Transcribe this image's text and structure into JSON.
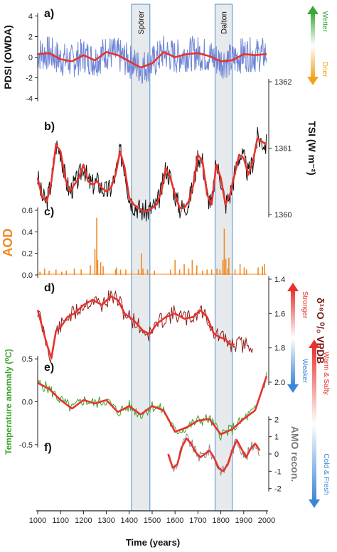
{
  "chart_data": {
    "type": "line",
    "xlabel": "Time (years)",
    "x_ticks": [
      1000,
      1100,
      1200,
      1300,
      1400,
      1500,
      1600,
      1700,
      1800,
      1900,
      2000
    ],
    "xlim": [
      1000,
      2000
    ],
    "periods": [
      {
        "label": "Spörer",
        "start": 1410,
        "end": 1490
      },
      {
        "label": "Dalton",
        "start": 1775,
        "end": 1850
      }
    ],
    "panels": [
      {
        "id": "a",
        "tag": "a)",
        "ylabel": "PDSI (OWDA)",
        "axis_side": "left",
        "ylim": [
          -5,
          5
        ],
        "ticks": [
          4,
          2,
          0,
          -2,
          -4
        ],
        "indicator": {
          "top": "Wetter",
          "bottom": "Drier",
          "top_color": "#3aa93a",
          "bottom_color": "#f0a31a"
        },
        "series": [
          {
            "role": "raw",
            "color": "#6f86d6",
            "seed": 7,
            "amp": 1.7,
            "x": [
              1000,
              1050,
              1100,
              1150,
              1200,
              1250,
              1300,
              1350,
              1400,
              1450,
              1500,
              1550,
              1600,
              1650,
              1700,
              1750,
              1800,
              1850,
              1900,
              1950,
              2000
            ],
            "y": [
              0.3,
              0.4,
              -0.2,
              -0.4,
              0.2,
              -0.3,
              0.5,
              0.2,
              -0.4,
              -1.0,
              -0.6,
              0.5,
              0.0,
              0.3,
              0.4,
              0.1,
              -0.4,
              -0.3,
              0.3,
              0.2,
              0.3
            ]
          },
          {
            "role": "smooth",
            "color": "#e8322d",
            "x": [
              1000,
              1050,
              1100,
              1150,
              1200,
              1250,
              1300,
              1350,
              1400,
              1450,
              1500,
              1550,
              1600,
              1650,
              1700,
              1750,
              1800,
              1850,
              1900,
              1950,
              2000
            ],
            "y": [
              0.3,
              0.4,
              -0.2,
              -0.4,
              0.2,
              -0.3,
              0.5,
              0.2,
              -0.4,
              -1.0,
              -0.6,
              0.5,
              0.0,
              0.3,
              0.4,
              0.1,
              -0.4,
              -0.3,
              0.3,
              0.2,
              0.3
            ]
          }
        ]
      },
      {
        "id": "b",
        "tag": "b)",
        "ylabel": "TSI (W m⁻²)",
        "axis_side": "right",
        "ylim": [
          1360,
          1362
        ],
        "ticks": [
          1360,
          1361,
          1362
        ],
        "series": [
          {
            "role": "raw",
            "color": "#111111",
            "seed": 3,
            "amp": 0.17,
            "x": [
              1000,
              1020,
              1040,
              1060,
              1080,
              1100,
              1120,
              1140,
              1160,
              1180,
              1200,
              1220,
              1240,
              1260,
              1280,
              1300,
              1320,
              1340,
              1360,
              1380,
              1400,
              1420,
              1440,
              1460,
              1480,
              1500,
              1520,
              1540,
              1560,
              1580,
              1600,
              1620,
              1640,
              1660,
              1680,
              1700,
              1720,
              1740,
              1760,
              1780,
              1800,
              1820,
              1840,
              1860,
              1880,
              1900,
              1920,
              1940,
              1960,
              1980,
              2000
            ],
            "y": [
              1360.55,
              1360.25,
              1360.2,
              1360.5,
              1361.05,
              1360.95,
              1360.55,
              1360.35,
              1360.45,
              1360.55,
              1360.75,
              1360.5,
              1360.45,
              1360.5,
              1360.4,
              1360.35,
              1360.4,
              1360.6,
              1360.95,
              1360.7,
              1360.25,
              1360.15,
              1360.1,
              1360.05,
              1360.05,
              1360.1,
              1360.15,
              1360.35,
              1360.7,
              1360.55,
              1360.3,
              1360.1,
              1360.1,
              1360.2,
              1360.45,
              1360.9,
              1360.8,
              1360.3,
              1360.15,
              1360.75,
              1360.55,
              1360.15,
              1360.3,
              1360.6,
              1360.9,
              1360.85,
              1360.6,
              1360.8,
              1361.15,
              1361.1,
              1361.05
            ]
          },
          {
            "role": "smooth",
            "color": "#e8322d",
            "x": [
              1000,
              1020,
              1040,
              1060,
              1080,
              1100,
              1120,
              1140,
              1160,
              1180,
              1200,
              1220,
              1240,
              1260,
              1280,
              1300,
              1320,
              1340,
              1360,
              1380,
              1400,
              1420,
              1440,
              1460,
              1480,
              1500,
              1520,
              1540,
              1560,
              1580,
              1600,
              1620,
              1640,
              1660,
              1680,
              1700,
              1720,
              1740,
              1760,
              1780,
              1800,
              1820,
              1840,
              1860,
              1880,
              1900,
              1920,
              1940,
              1960,
              1980,
              2000
            ],
            "y": [
              1360.55,
              1360.25,
              1360.2,
              1360.5,
              1361.05,
              1360.95,
              1360.55,
              1360.35,
              1360.45,
              1360.55,
              1360.75,
              1360.5,
              1360.45,
              1360.5,
              1360.4,
              1360.35,
              1360.4,
              1360.6,
              1360.95,
              1360.7,
              1360.25,
              1360.15,
              1360.1,
              1360.05,
              1360.05,
              1360.1,
              1360.15,
              1360.35,
              1360.7,
              1360.55,
              1360.3,
              1360.1,
              1360.1,
              1360.2,
              1360.45,
              1360.9,
              1360.8,
              1360.3,
              1360.15,
              1360.75,
              1360.55,
              1360.15,
              1360.3,
              1360.6,
              1360.9,
              1360.85,
              1360.6,
              1360.8,
              1361.15,
              1361.1,
              1361.05
            ]
          }
        ]
      },
      {
        "id": "c",
        "tag": "c)",
        "ylabel": "AOD",
        "ylabel_color": "#f08a24",
        "axis_side": "left",
        "ylim": [
          0,
          0.6
        ],
        "ticks": [
          0.6,
          0.4,
          0.2,
          0.0
        ],
        "tick_format": 1,
        "series": [
          {
            "role": "spikes",
            "color": "#f08a24",
            "x": [
              1010,
              1030,
              1050,
              1080,
              1105,
              1125,
              1160,
              1190,
              1230,
              1250,
              1258,
              1262,
              1275,
              1286,
              1340,
              1345,
              1362,
              1385,
              1410,
              1440,
              1453,
              1460,
              1480,
              1510,
              1580,
              1600,
              1620,
              1640,
              1660,
              1675,
              1695,
              1720,
              1740,
              1760,
              1783,
              1796,
              1809,
              1815,
              1822,
              1831,
              1835,
              1862,
              1884,
              1902,
              1912,
              1963,
              1982,
              1991
            ],
            "y": [
              0.03,
              0.06,
              0.04,
              0.05,
              0.03,
              0.04,
              0.06,
              0.05,
              0.09,
              0.24,
              0.53,
              0.14,
              0.12,
              0.08,
              0.05,
              0.07,
              0.05,
              0.05,
              0.04,
              0.05,
              0.2,
              0.06,
              0.05,
              0.04,
              0.05,
              0.14,
              0.05,
              0.1,
              0.06,
              0.14,
              0.09,
              0.04,
              0.05,
              0.05,
              0.06,
              0.05,
              0.14,
              0.43,
              0.15,
              0.06,
              0.16,
              0.05,
              0.1,
              0.07,
              0.05,
              0.07,
              0.08,
              0.1
            ]
          }
        ]
      },
      {
        "id": "d",
        "tag": "d)",
        "ylabel": "δ¹⁸O ⁰/₀ VPDB",
        "ylabel_color": "#7a1a1a",
        "axis_side": "right",
        "ylim": [
          2.0,
          1.4
        ],
        "ticks": [
          1.4,
          1.6,
          1.8,
          2.0
        ],
        "tick_format": 1,
        "indicator": {
          "top": "Stronger",
          "bottom": "Weaker",
          "top_color": "#e8322d",
          "bottom_color": "#3a86d9"
        },
        "series": [
          {
            "role": "raw",
            "color": "#8b1c1c",
            "seed": 11,
            "amp": 0.05,
            "x": [
              1000,
              1020,
              1040,
              1060,
              1080,
              1100,
              1130,
              1160,
              1200,
              1240,
              1280,
              1320,
              1350,
              1380,
              1420,
              1460,
              1490,
              1520,
              1560,
              1600,
              1640,
              1680,
              1710,
              1740,
              1770,
              1800,
              1820,
              1840,
              1860,
              1900,
              1940
            ],
            "y": [
              1.58,
              1.68,
              1.78,
              1.86,
              1.7,
              1.68,
              1.62,
              1.6,
              1.55,
              1.52,
              1.55,
              1.5,
              1.52,
              1.6,
              1.64,
              1.7,
              1.72,
              1.66,
              1.62,
              1.6,
              1.63,
              1.62,
              1.58,
              1.62,
              1.72,
              1.74,
              1.75,
              1.78,
              1.78,
              1.78,
              1.78
            ]
          },
          {
            "role": "smooth",
            "color": "#e8322d",
            "x": [
              1000,
              1020,
              1040,
              1060,
              1080,
              1100,
              1130,
              1160,
              1200,
              1240,
              1280,
              1320,
              1350,
              1380,
              1420,
              1460,
              1490,
              1520,
              1560,
              1600,
              1640,
              1680,
              1710,
              1740,
              1770,
              1800,
              1820,
              1840,
              1860
            ],
            "y": [
              1.58,
              1.68,
              1.78,
              1.86,
              1.7,
              1.68,
              1.62,
              1.6,
              1.55,
              1.52,
              1.55,
              1.5,
              1.52,
              1.6,
              1.64,
              1.7,
              1.72,
              1.66,
              1.62,
              1.6,
              1.63,
              1.62,
              1.58,
              1.62,
              1.72,
              1.74,
              1.75,
              1.78,
              1.78
            ]
          }
        ]
      },
      {
        "id": "e",
        "tag": "e)",
        "ylabel": "Temperature anomaly (⁰C)",
        "ylabel_color": "#3aa32a",
        "axis_side": "left",
        "ylim": [
          -0.7,
          0.75
        ],
        "ticks": [
          0.5,
          0.0,
          -0.5
        ],
        "tick_format": 1,
        "indicator": {
          "top": "Warm & Salty",
          "bottom": "Cold & Fresh",
          "top_color": "#e8322d",
          "bottom_color": "#3a86d9"
        },
        "series": [
          {
            "role": "raw",
            "color": "#3aa32a",
            "seed": 5,
            "amp": 0.07,
            "x": [
              1000,
              1050,
              1100,
              1150,
              1200,
              1250,
              1300,
              1350,
              1400,
              1450,
              1500,
              1550,
              1600,
              1650,
              1700,
              1750,
              1800,
              1850,
              1900,
              1950,
              2000
            ],
            "y": [
              0.22,
              0.15,
              0.02,
              -0.08,
              0.02,
              -0.02,
              0.02,
              -0.12,
              -0.05,
              -0.15,
              -0.05,
              -0.1,
              -0.35,
              -0.3,
              -0.22,
              -0.2,
              -0.38,
              -0.32,
              -0.2,
              -0.1,
              0.3
            ]
          },
          {
            "role": "smooth",
            "color": "#e8322d",
            "x": [
              1000,
              1050,
              1100,
              1150,
              1200,
              1250,
              1300,
              1350,
              1400,
              1450,
              1500,
              1550,
              1600,
              1650,
              1700,
              1750,
              1800,
              1850,
              1900,
              1950,
              2000
            ],
            "y": [
              0.22,
              0.15,
              0.02,
              -0.08,
              0.02,
              -0.02,
              0.02,
              -0.12,
              -0.05,
              -0.15,
              -0.05,
              -0.1,
              -0.35,
              -0.3,
              -0.22,
              -0.2,
              -0.38,
              -0.32,
              -0.2,
              -0.1,
              0.3
            ]
          }
        ]
      },
      {
        "id": "f",
        "tag": "f)",
        "ylabel": "AMO recon.",
        "ylabel_color": "#777777",
        "axis_side": "right",
        "ylim": [
          -2.3,
          2.3
        ],
        "ticks": [
          2,
          1,
          0,
          -1,
          -2
        ],
        "series": [
          {
            "role": "raw",
            "color": "#8a8a8a",
            "seed": 9,
            "amp": 0.35,
            "x": [
              1570,
              1590,
              1610,
              1630,
              1650,
              1670,
              1690,
              1710,
              1730,
              1750,
              1770,
              1790,
              1810,
              1830,
              1850,
              1870,
              1890,
              1910,
              1930,
              1950,
              1970
            ],
            "y": [
              0.0,
              -0.8,
              -0.6,
              0.4,
              0.9,
              0.6,
              0.1,
              -0.2,
              0.0,
              0.2,
              -0.2,
              -0.8,
              -1.0,
              -0.6,
              0.2,
              0.8,
              0.3,
              -0.2,
              0.3,
              0.6,
              0.2
            ]
          },
          {
            "role": "smooth",
            "color": "#e8322d",
            "x": [
              1570,
              1590,
              1610,
              1630,
              1650,
              1670,
              1690,
              1710,
              1730,
              1750,
              1770,
              1790,
              1810,
              1830,
              1850,
              1870,
              1890,
              1910,
              1930,
              1950,
              1970
            ],
            "y": [
              0.0,
              -0.8,
              -0.6,
              0.4,
              0.9,
              0.6,
              0.1,
              -0.2,
              0.0,
              0.2,
              -0.2,
              -0.8,
              -1.0,
              -0.6,
              0.2,
              0.8,
              0.3,
              -0.2,
              0.3,
              0.6,
              0.2
            ]
          }
        ]
      }
    ]
  }
}
